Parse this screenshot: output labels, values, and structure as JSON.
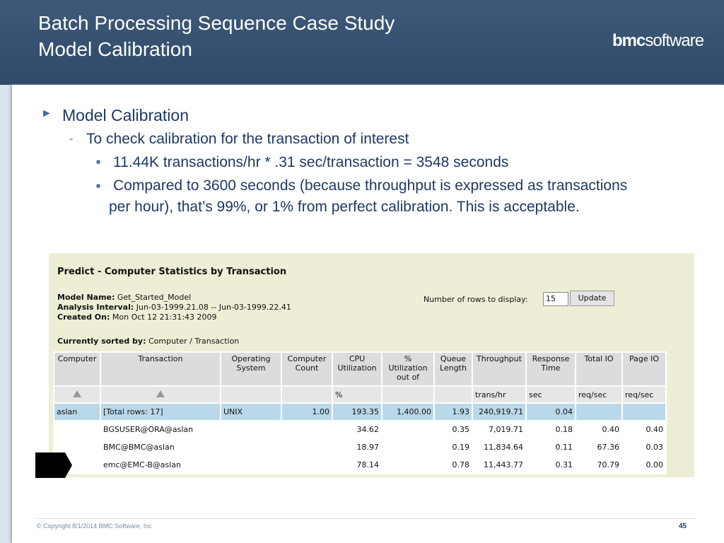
{
  "header": {
    "title_lines": [
      "Batch Processing Sequence Case Study",
      "Model Calibration"
    ],
    "logo_bold": "bmc",
    "logo_light": "software"
  },
  "bullets": {
    "level1": "Model Calibration",
    "level2": "To check calibration for the transaction of interest",
    "level3": [
      "11.44K transactions/hr * .31 sec/transaction = 3548 seconds",
      "Compared to 3600 seconds (because throughput is expressed as transactions",
      "per hour), that’s 99%, or 1% from perfect calibration.  This is acceptable."
    ]
  },
  "screenshot": {
    "title": "Predict - Computer Statistics by Transaction",
    "model_name_label": "Model Name:",
    "model_name": "Get_Started_Model",
    "interval_label": "Analysis Interval:",
    "interval": "Jun-03-1999.21.08 -- Jun-03-1999.22.41",
    "created_label": "Created On:",
    "created": "Mon Oct 12 21:31:43 2009",
    "rows_label": "Number of rows to display:",
    "rows_input": "15",
    "button": "Update",
    "sorted_label": "Currently sorted by:",
    "sorted": "Computer / Transaction",
    "table": {
      "headers": [
        "Computer",
        "Transaction",
        "Operating System",
        "Computer Count",
        "CPU Utilization",
        "% Utilization out of",
        "Queue Length",
        "Throughput",
        "Response Time",
        "Total IO",
        "Page IO"
      ],
      "units": [
        null,
        null,
        null,
        null,
        "%",
        null,
        null,
        "trans/hr",
        "sec",
        "req/sec",
        "req/sec"
      ],
      "rows": [
        [
          "aslan",
          "[Total rows: 17]",
          "UNIX",
          "1.00",
          "193.35",
          "1,400.00",
          "1.93",
          "240,919.71",
          "0.04",
          null,
          null
        ],
        [
          null,
          "BGSUSER@ORA@aslan",
          null,
          null,
          "34.62",
          null,
          "0.35",
          "7,019.71",
          "0.18",
          "0.40",
          "0.40"
        ],
        [
          null,
          "BMC@BMC@aslan",
          null,
          null,
          "18.97",
          null,
          "0.19",
          "11,834.64",
          "0.11",
          "67.36",
          "0.03"
        ],
        [
          null,
          "emc@EMC-B@aslan",
          null,
          null,
          "78.14",
          null,
          "0.78",
          "11,443.77",
          "0.31",
          "70.79",
          "0.00"
        ]
      ]
    }
  },
  "footer": {
    "copyright": "© Copyright 8/1/2014 BMC Software, Inc",
    "page": "45"
  }
}
